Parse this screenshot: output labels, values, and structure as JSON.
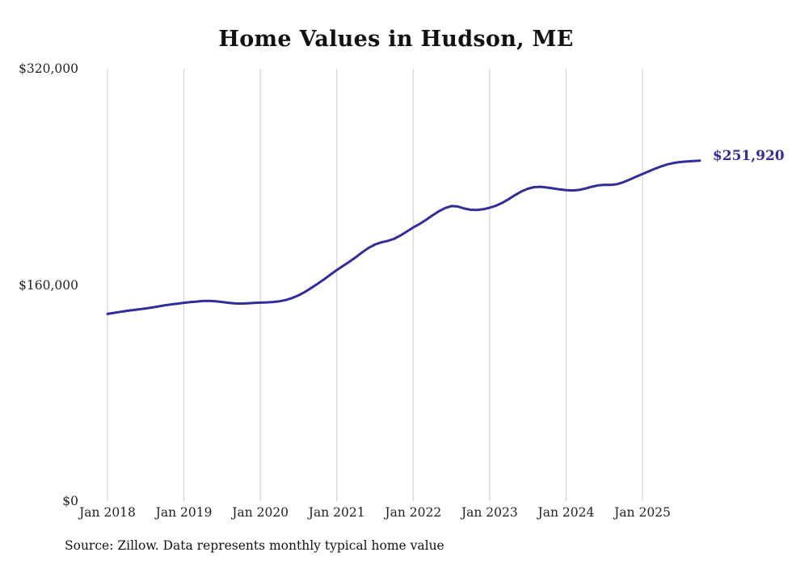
{
  "title": "Home Values in Hudson, ME",
  "source_note": "Source: Zillow. Data represents monthly typical home value",
  "colors": {
    "line": "#312e9b",
    "grid": "#cccccc",
    "text": "#222222",
    "title_text": "#111111"
  },
  "chart_data": {
    "type": "line",
    "title": "Home Values in Hudson, ME",
    "x_start": "2018-01",
    "x_end": "2025-10",
    "x_tick_labels": [
      "Jan 2018",
      "Jan 2019",
      "Jan 2020",
      "Jan 2021",
      "Jan 2022",
      "Jan 2023",
      "Jan 2024",
      "Jan 2025"
    ],
    "y_ticks": [
      0,
      160000,
      320000
    ],
    "y_tick_labels": [
      "$0",
      "$160,000",
      "$320,000"
    ],
    "ylim": [
      0,
      320000
    ],
    "grid": "vertical-only",
    "legend": "none",
    "latest_value": 251920,
    "latest_value_label": "$251,920",
    "values": [
      138500,
      139300,
      140100,
      140800,
      141400,
      142000,
      142600,
      143300,
      144100,
      144900,
      145600,
      146200,
      146800,
      147300,
      147700,
      148100,
      148200,
      147900,
      147400,
      146800,
      146300,
      146200,
      146400,
      146700,
      146900,
      147100,
      147400,
      147900,
      148800,
      150300,
      152300,
      154800,
      157800,
      160900,
      164100,
      167600,
      171000,
      174100,
      177200,
      180600,
      184100,
      187400,
      189900,
      191500,
      192600,
      194100,
      196600,
      199500,
      202500,
      205100,
      208100,
      211400,
      214400,
      216900,
      218400,
      218000,
      216600,
      215600,
      215500,
      216000,
      217100,
      218600,
      220800,
      223500,
      226500,
      229200,
      231200,
      232400,
      232600,
      232100,
      231400,
      230700,
      230100,
      229900,
      230300,
      231300,
      232600,
      233600,
      234100,
      234000,
      234500,
      236000,
      238000,
      240100,
      242100,
      244100,
      246100,
      247800,
      249300,
      250300,
      251000,
      251400,
      251700,
      251920
    ]
  }
}
